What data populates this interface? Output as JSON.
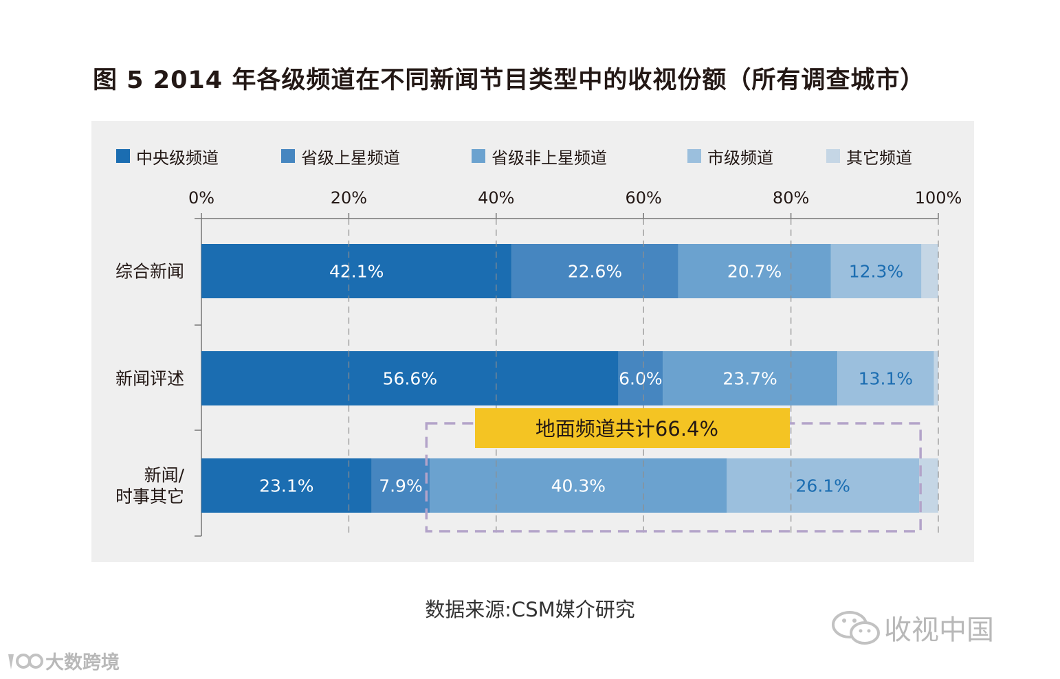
{
  "title": "图 5  2014 年各级频道在不同新闻节目类型中的收视份额（所有调查城市）",
  "source": "数据来源:CSM媒介研究",
  "watermark_right": "收视中国",
  "watermark_left": "大数跨境",
  "colors": {
    "central": "#1b6db1",
    "provincial_satellite": "#4686c0",
    "provincial_non_satellite": "#6ba2cf",
    "city": "#9bbfdd",
    "other": "#c5d6e5",
    "highlight": "#f4c423",
    "dashed_box": "#b3a3c9",
    "background": "#efefef"
  },
  "chart_data": {
    "type": "bar",
    "orientation": "horizontal",
    "stacked": true,
    "categories": [
      "综合新闻",
      "新闻评述",
      "新闻/时事其它"
    ],
    "category_lines": [
      [
        "综合新闻"
      ],
      [
        "新闻评述"
      ],
      [
        "新闻/",
        "时事其它"
      ]
    ],
    "series": [
      {
        "name": "中央级频道",
        "color": "#1b6db1",
        "values": [
          42.1,
          56.6,
          23.1
        ],
        "labels": [
          "42.1%",
          "56.6%",
          "23.1%"
        ],
        "label_color": "#ffffff"
      },
      {
        "name": "省级上星频道",
        "color": "#4686c0",
        "values": [
          22.6,
          6.0,
          7.9
        ],
        "labels": [
          "22.6%",
          "6.0%",
          "7.9%"
        ],
        "label_color": "#ffffff"
      },
      {
        "name": "省级非上星频道",
        "color": "#6ba2cf",
        "values": [
          20.7,
          23.7,
          40.3
        ],
        "labels": [
          "20.7%",
          "23.7%",
          "40.3%"
        ],
        "label_color": "#ffffff"
      },
      {
        "name": "市级频道",
        "color": "#9bbfdd",
        "values": [
          12.3,
          13.1,
          26.1
        ],
        "labels": [
          "12.3%",
          "13.1%",
          "26.1%"
        ],
        "label_color": "#1b6db1"
      },
      {
        "name": "其它频道",
        "color": "#c5d6e5",
        "values": [
          2.3,
          0.6,
          2.6
        ],
        "labels": [
          "",
          "",
          ""
        ],
        "label_color": "#1b6db1"
      }
    ],
    "xticks": [
      "0%",
      "20%",
      "40%",
      "60%",
      "80%",
      "100%"
    ],
    "xlim": [
      0,
      100
    ],
    "grid": true,
    "legend_position": "top",
    "annotation": {
      "text": "地面频道共计66.4%",
      "category": "新闻/时事其它",
      "value": 66.4
    }
  }
}
